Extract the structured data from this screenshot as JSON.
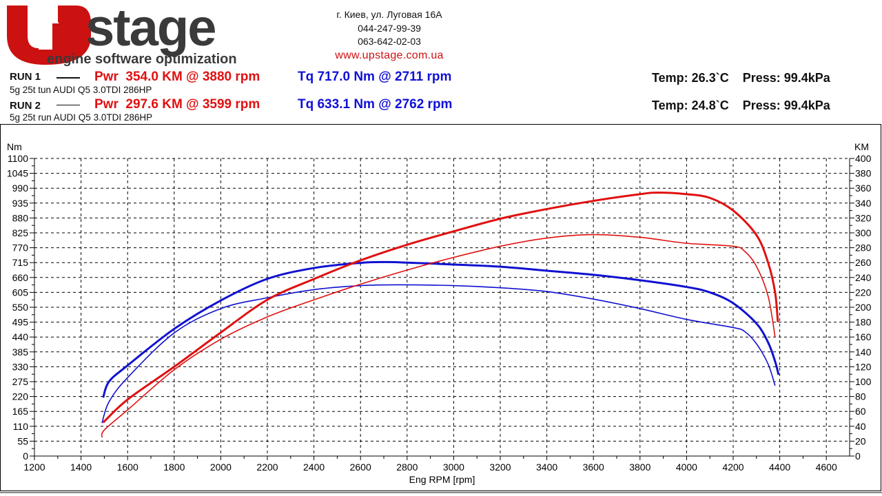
{
  "logo": {
    "text": "Upstage",
    "tagline": "engine software optimization"
  },
  "contact": {
    "address": "г. Киев, ул. Луговая 16А",
    "phone1": "044-247-99-39",
    "phone2": "063-642-02-03",
    "website": "www.upstage.com.ua"
  },
  "runs": [
    {
      "label": "RUN 1",
      "power": "Pwr  354.0 KM @ 3880 rpm",
      "torque": "Tq 717.0 Nm @ 2711 rpm",
      "description": "5g 25t tun AUDI Q5 3.0TDI 286HP",
      "conditions": "Temp: 26.3`C    Press: 99.4kPa"
    },
    {
      "label": "RUN 2",
      "power": "Pwr  297.6 KM @ 3599 rpm",
      "torque": "Tq 633.1 Nm @ 2762 rpm",
      "description": "5g 25t run AUDI Q5 3.0TDI 286HP",
      "conditions": "Temp: 24.8`C    Press: 99.4kPa"
    }
  ],
  "chart_data": {
    "type": "line",
    "xlabel": "Eng RPM [rpm]",
    "ylabel_left": "Nm",
    "ylabel_right": "KM",
    "xlim": [
      1200,
      4700
    ],
    "ylim_left": [
      0,
      1100
    ],
    "ylim_right": [
      0,
      400
    ],
    "xticks": [
      1200,
      1400,
      1600,
      1800,
      2000,
      2200,
      2400,
      2600,
      2800,
      3000,
      3200,
      3400,
      3600,
      3800,
      4000,
      4200,
      4400,
      4600
    ],
    "yticks_left": [
      0,
      55,
      110,
      165,
      220,
      275,
      330,
      385,
      440,
      495,
      550,
      605,
      660,
      715,
      770,
      825,
      880,
      935,
      990,
      1045,
      1100
    ],
    "yticks_right": [
      0,
      20,
      40,
      60,
      80,
      100,
      120,
      140,
      160,
      180,
      200,
      220,
      240,
      260,
      280,
      300,
      320,
      340,
      360,
      380,
      400
    ],
    "grid": true,
    "colors": {
      "power": "#e01010",
      "torque": "#1010d0"
    },
    "series": [
      {
        "run": "RUN 1",
        "quantity": "torque",
        "axis": "left",
        "width": "thick",
        "x": [
          1495,
          1520,
          1600,
          1800,
          2000,
          2200,
          2400,
          2600,
          2711,
          2800,
          3000,
          3200,
          3400,
          3600,
          3800,
          4000,
          4100,
          4200,
          4300,
          4350,
          4380,
          4395
        ],
        "y": [
          216,
          275,
          335,
          470,
          575,
          655,
          695,
          714,
          717,
          715,
          708,
          700,
          685,
          670,
          650,
          625,
          605,
          565,
          490,
          420,
          350,
          300
        ]
      },
      {
        "run": "RUN 2",
        "quantity": "torque",
        "axis": "left",
        "width": "thin",
        "x": [
          1490,
          1520,
          1600,
          1800,
          2000,
          2200,
          2400,
          2600,
          2762,
          3000,
          3200,
          3400,
          3600,
          3800,
          4000,
          4200,
          4250,
          4300,
          4350,
          4380
        ],
        "y": [
          122,
          200,
          290,
          455,
          545,
          585,
          615,
          630,
          633,
          630,
          622,
          608,
          580,
          545,
          505,
          475,
          460,
          415,
          340,
          260
        ]
      },
      {
        "run": "RUN 1",
        "quantity": "power",
        "axis": "right",
        "width": "thick",
        "x": [
          1495,
          1600,
          1800,
          2000,
          2200,
          2400,
          2600,
          2800,
          3000,
          3200,
          3400,
          3600,
          3800,
          3880,
          4000,
          4100,
          4200,
          4300,
          4350,
          4380,
          4392
        ],
        "y": [
          45,
          76,
          120,
          166,
          210,
          238,
          263,
          284,
          302,
          319,
          332,
          343,
          352,
          354,
          352,
          347,
          330,
          297,
          260,
          220,
          180
        ]
      },
      {
        "run": "RUN 2",
        "quantity": "power",
        "axis": "right",
        "width": "thin",
        "x": [
          1490,
          1500,
          1600,
          1800,
          2000,
          2200,
          2400,
          2600,
          2800,
          3000,
          3200,
          3400,
          3599,
          3800,
          4000,
          4200,
          4250,
          4300,
          4350,
          4380
        ],
        "y": [
          25,
          35,
          62,
          116,
          157,
          187,
          210,
          231,
          250,
          267,
          282,
          293,
          297.6,
          294,
          286,
          282,
          275,
          255,
          215,
          160
        ]
      }
    ]
  }
}
